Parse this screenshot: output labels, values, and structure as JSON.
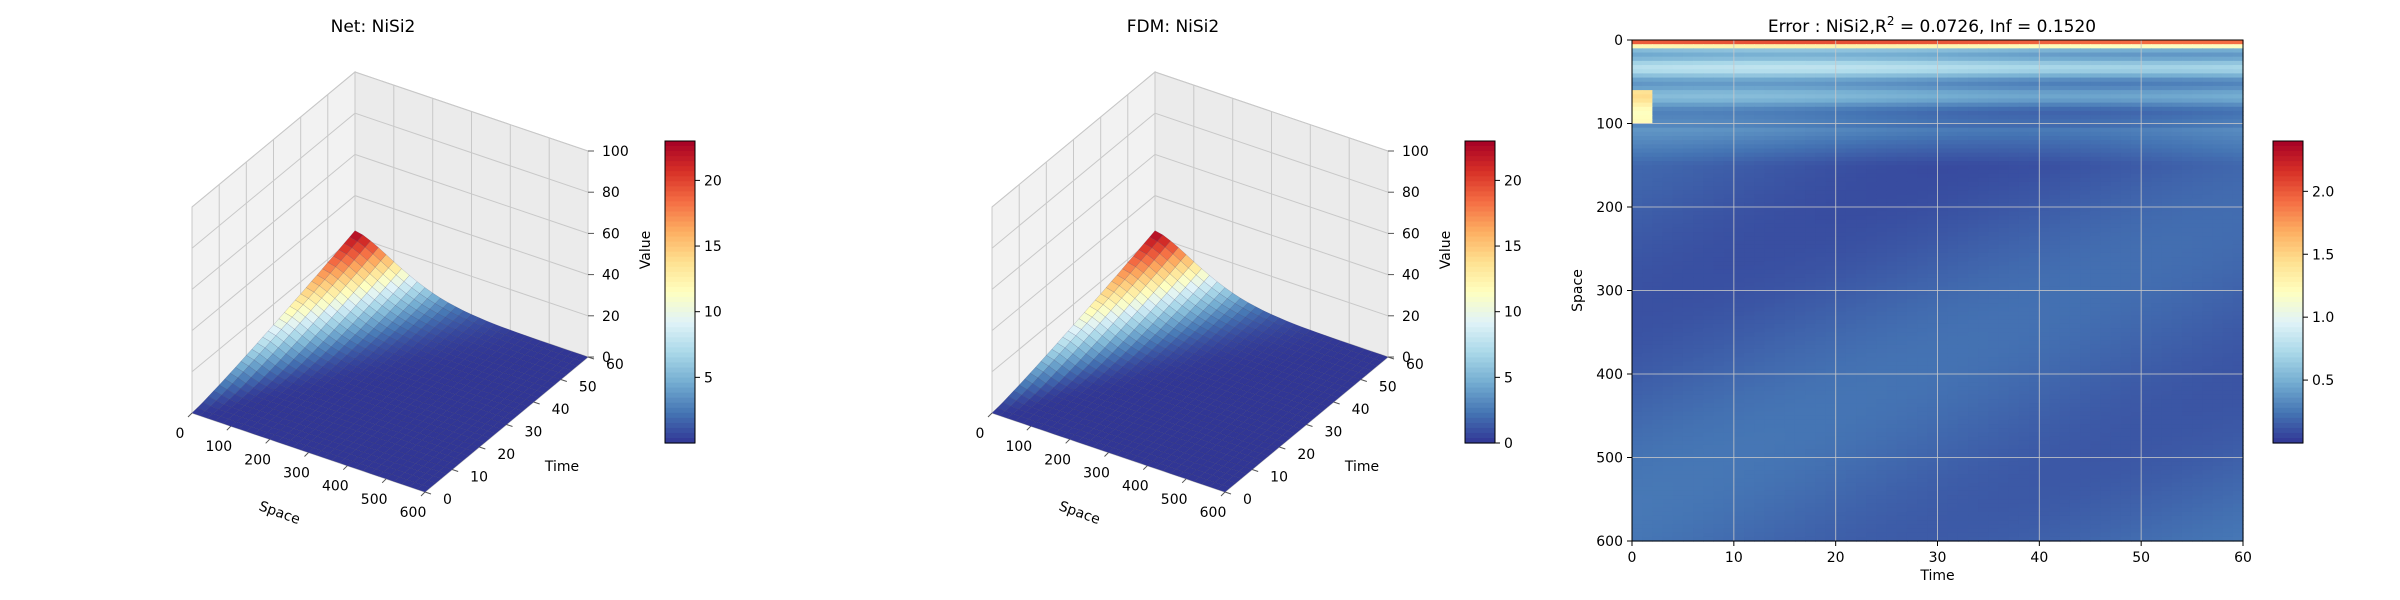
{
  "chart_data": [
    {
      "type": "surface3d",
      "title": "Net: NiSi2",
      "xlabel": "Space",
      "ylabel": "Time",
      "zlabel": "Value",
      "xlim": [
        0,
        600
      ],
      "ylim": [
        0,
        60
      ],
      "zlim": [
        0,
        100
      ],
      "xticks": [
        "0",
        "100",
        "200",
        "300",
        "400",
        "500",
        "600"
      ],
      "yticks": [
        "0",
        "10",
        "20",
        "30",
        "40",
        "50",
        "60"
      ],
      "zticks": [
        "0",
        "20",
        "40",
        "60",
        "80",
        "100"
      ],
      "colormap": "RdYlBu_r",
      "colorbar": {
        "min": 0,
        "max": 23,
        "ticks": [
          "5",
          "10",
          "15",
          "20"
        ]
      },
      "peak_value": 23,
      "peak_location": {
        "space": 0,
        "time": 60
      },
      "grid": true
    },
    {
      "type": "surface3d",
      "title": "FDM: NiSi2",
      "xlabel": "Space",
      "ylabel": "Time",
      "zlabel": "Value",
      "xlim": [
        0,
        600
      ],
      "ylim": [
        0,
        60
      ],
      "zlim": [
        0,
        100
      ],
      "xticks": [
        "0",
        "100",
        "200",
        "300",
        "400",
        "500",
        "600"
      ],
      "yticks": [
        "0",
        "10",
        "20",
        "30",
        "40",
        "50",
        "60"
      ],
      "zticks": [
        "0",
        "20",
        "40",
        "60",
        "80",
        "100"
      ],
      "colormap": "RdYlBu_r",
      "colorbar": {
        "min": 0,
        "max": 23,
        "ticks": [
          "0",
          "5",
          "10",
          "15",
          "20"
        ]
      },
      "peak_value": 23,
      "peak_location": {
        "space": 0,
        "time": 60
      },
      "grid": true
    },
    {
      "type": "heatmap",
      "title_prefix": "Error : NiSi2,R",
      "title_sup": "2",
      "title_suffix": " = 0.0726, Inf = 0.1520",
      "xlabel": "Time",
      "ylabel": "Space",
      "xlim": [
        0,
        60
      ],
      "ylim": [
        0,
        600
      ],
      "y_inverted": true,
      "xticks": [
        "0",
        "10",
        "20",
        "30",
        "40",
        "50",
        "60"
      ],
      "yticks": [
        "0",
        "100",
        "200",
        "300",
        "400",
        "500",
        "600"
      ],
      "colormap": "RdYlBu_r",
      "colorbar": {
        "min": 0,
        "max": 2.4,
        "ticks": [
          "0.5",
          "1.0",
          "1.5",
          "2.0"
        ]
      },
      "grid": true
    }
  ]
}
